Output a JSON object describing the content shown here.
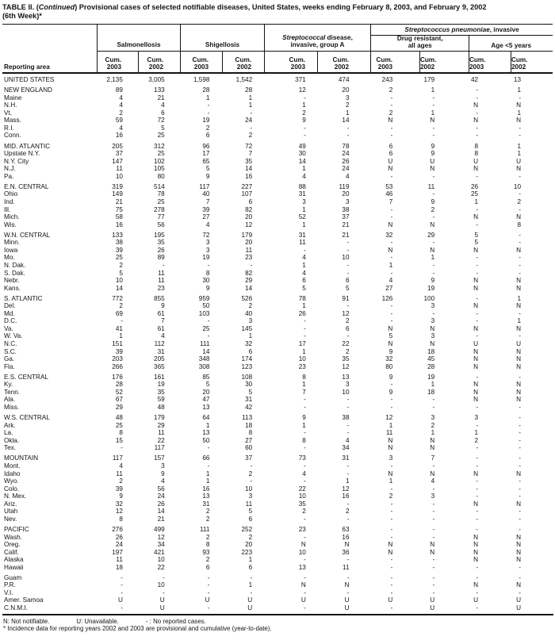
{
  "title": {
    "pre": "TABLE II. (",
    "cont": "Continued",
    "post": ") Provisional cases of selected notifiable diseases, United States, weeks ending February 8, 2003, and February 9, 2002",
    "line2": "(6th Week)*"
  },
  "header": {
    "reporting_area": "Reporting area",
    "groups": {
      "salmonellosis": "Salmonellosis",
      "shigellosis": "Shigellosis",
      "strep_a_italic": "Streptococcal",
      "strep_a_rest1": " disease,",
      "strep_a_line2": "invasive, group A",
      "pneumoniae_italic": "Streptococcus pneumoniae",
      "pneumoniae_rest": ", invasive",
      "drug_resistant_line1": "Drug resistant,",
      "drug_resistant_line2": "all ages",
      "age_under_5": "Age <5 years"
    },
    "columns": [
      {
        "line1": "Cum.",
        "line2": "2003"
      },
      {
        "line1": "Cum.",
        "line2": "2002"
      },
      {
        "line1": "Cum.",
        "line2": "2003"
      },
      {
        "line1": "Cum.",
        "line2": "2002"
      },
      {
        "line1": "Cum.",
        "line2": "2003"
      },
      {
        "line1": "Cum.",
        "line2": "2002"
      },
      {
        "line1": "Cum.",
        "line2": "2003"
      },
      {
        "line1": "Cum.",
        "line2": "2002"
      },
      {
        "line1": "Cum.",
        "line2": "2003"
      },
      {
        "line1": "Cum.",
        "line2": "2002"
      }
    ]
  },
  "rows": [
    {
      "area": "UNITED STATES",
      "kind": "total",
      "gap": false,
      "values": [
        "2,135",
        "3,005",
        "1,598",
        "1,542",
        "371",
        "474",
        "243",
        "179",
        "42",
        "13"
      ]
    },
    {
      "area": "NEW ENGLAND",
      "kind": "region",
      "gap": true,
      "values": [
        "89",
        "133",
        "28",
        "28",
        "12",
        "20",
        "2",
        "1",
        "-",
        "1"
      ]
    },
    {
      "area": "Maine",
      "kind": "state",
      "gap": false,
      "values": [
        "4",
        "21",
        "1",
        "1",
        "-",
        "3",
        "-",
        "-",
        "-",
        "-"
      ]
    },
    {
      "area": "N.H.",
      "kind": "state",
      "gap": false,
      "values": [
        "4",
        "4",
        "-",
        "1",
        "1",
        "2",
        "-",
        "-",
        "N",
        "N"
      ]
    },
    {
      "area": "Vt.",
      "kind": "state",
      "gap": false,
      "values": [
        "2",
        "6",
        "-",
        "-",
        "2",
        "1",
        "2",
        "1",
        "-",
        "1"
      ]
    },
    {
      "area": "Mass.",
      "kind": "state",
      "gap": false,
      "values": [
        "59",
        "72",
        "19",
        "24",
        "9",
        "14",
        "N",
        "N",
        "N",
        "N"
      ]
    },
    {
      "area": "R.I.",
      "kind": "state",
      "gap": false,
      "values": [
        "4",
        "5",
        "2",
        "-",
        "-",
        "-",
        "-",
        "-",
        "-",
        "-"
      ]
    },
    {
      "area": "Conn.",
      "kind": "state",
      "gap": false,
      "values": [
        "16",
        "25",
        "6",
        "2",
        "-",
        "-",
        "-",
        "-",
        "-",
        "-"
      ]
    },
    {
      "area": "MID. ATLANTIC",
      "kind": "region",
      "gap": true,
      "values": [
        "205",
        "312",
        "96",
        "72",
        "49",
        "78",
        "6",
        "9",
        "8",
        "1"
      ]
    },
    {
      "area": "Upstate N.Y.",
      "kind": "state",
      "gap": false,
      "values": [
        "37",
        "25",
        "17",
        "7",
        "30",
        "24",
        "6",
        "9",
        "8",
        "1"
      ]
    },
    {
      "area": "N.Y. City",
      "kind": "state",
      "gap": false,
      "values": [
        "147",
        "102",
        "65",
        "35",
        "14",
        "26",
        "U",
        "U",
        "U",
        "U"
      ]
    },
    {
      "area": "N.J.",
      "kind": "state",
      "gap": false,
      "values": [
        "11",
        "105",
        "5",
        "14",
        "1",
        "24",
        "N",
        "N",
        "N",
        "N"
      ]
    },
    {
      "area": "Pa.",
      "kind": "state",
      "gap": false,
      "values": [
        "10",
        "80",
        "9",
        "16",
        "4",
        "4",
        "-",
        "-",
        "-",
        "-"
      ]
    },
    {
      "area": "E.N. CENTRAL",
      "kind": "region",
      "gap": true,
      "values": [
        "319",
        "514",
        "117",
        "227",
        "88",
        "119",
        "53",
        "11",
        "26",
        "10"
      ]
    },
    {
      "area": "Ohio",
      "kind": "state",
      "gap": false,
      "values": [
        "149",
        "78",
        "40",
        "107",
        "31",
        "20",
        "46",
        "-",
        "25",
        "-"
      ]
    },
    {
      "area": "Ind.",
      "kind": "state",
      "gap": false,
      "values": [
        "21",
        "25",
        "7",
        "6",
        "3",
        "3",
        "7",
        "9",
        "1",
        "2"
      ]
    },
    {
      "area": "Ill.",
      "kind": "state",
      "gap": false,
      "values": [
        "75",
        "278",
        "39",
        "82",
        "1",
        "38",
        "-",
        "2",
        "-",
        "-"
      ]
    },
    {
      "area": "Mich.",
      "kind": "state",
      "gap": false,
      "values": [
        "58",
        "77",
        "27",
        "20",
        "52",
        "37",
        "-",
        "-",
        "N",
        "N"
      ]
    },
    {
      "area": "Wis.",
      "kind": "state",
      "gap": false,
      "values": [
        "16",
        "56",
        "4",
        "12",
        "1",
        "21",
        "N",
        "N",
        "-",
        "8"
      ]
    },
    {
      "area": "W.N. CENTRAL",
      "kind": "region",
      "gap": true,
      "values": [
        "133",
        "195",
        "72",
        "179",
        "31",
        "21",
        "32",
        "29",
        "5",
        "-"
      ]
    },
    {
      "area": "Minn.",
      "kind": "state",
      "gap": false,
      "values": [
        "38",
        "35",
        "3",
        "20",
        "11",
        "-",
        "-",
        "-",
        "5",
        "-"
      ]
    },
    {
      "area": "Iowa",
      "kind": "state",
      "gap": false,
      "values": [
        "39",
        "26",
        "3",
        "11",
        "-",
        "-",
        "N",
        "N",
        "N",
        "N"
      ]
    },
    {
      "area": "Mo.",
      "kind": "state",
      "gap": false,
      "values": [
        "25",
        "89",
        "19",
        "23",
        "4",
        "10",
        "-",
        "1",
        "-",
        "-"
      ]
    },
    {
      "area": "N. Dak.",
      "kind": "state",
      "gap": false,
      "values": [
        "2",
        "-",
        "-",
        "-",
        "1",
        "-",
        "1",
        "-",
        "-",
        "-"
      ]
    },
    {
      "area": "S. Dak.",
      "kind": "state",
      "gap": false,
      "values": [
        "5",
        "11",
        "8",
        "82",
        "4",
        "-",
        "-",
        "-",
        "-",
        "-"
      ]
    },
    {
      "area": "Nebr.",
      "kind": "state",
      "gap": false,
      "values": [
        "10",
        "11",
        "30",
        "29",
        "6",
        "6",
        "4",
        "9",
        "N",
        "N"
      ]
    },
    {
      "area": "Kans.",
      "kind": "state",
      "gap": false,
      "values": [
        "14",
        "23",
        "9",
        "14",
        "5",
        "5",
        "27",
        "19",
        "N",
        "N"
      ]
    },
    {
      "area": "S. ATLANTIC",
      "kind": "region",
      "gap": true,
      "values": [
        "772",
        "855",
        "959",
        "526",
        "78",
        "91",
        "126",
        "100",
        "-",
        "1"
      ]
    },
    {
      "area": "Del.",
      "kind": "state",
      "gap": false,
      "values": [
        "2",
        "9",
        "50",
        "2",
        "1",
        "-",
        "-",
        "3",
        "N",
        "N"
      ]
    },
    {
      "area": "Md.",
      "kind": "state",
      "gap": false,
      "values": [
        "69",
        "61",
        "103",
        "40",
        "26",
        "12",
        "-",
        "-",
        "-",
        "-"
      ]
    },
    {
      "area": "D.C.",
      "kind": "state",
      "gap": false,
      "values": [
        "-",
        "7",
        "-",
        "3",
        "-",
        "2",
        "-",
        "3",
        "-",
        "1"
      ]
    },
    {
      "area": "Va.",
      "kind": "state",
      "gap": false,
      "values": [
        "41",
        "61",
        "25",
        "145",
        "-",
        "6",
        "N",
        "N",
        "N",
        "N"
      ]
    },
    {
      "area": "W. Va.",
      "kind": "state",
      "gap": false,
      "values": [
        "1",
        "4",
        "-",
        "1",
        "-",
        "-",
        "5",
        "3",
        "-",
        "-"
      ]
    },
    {
      "area": "N.C.",
      "kind": "state",
      "gap": false,
      "values": [
        "151",
        "112",
        "111",
        "32",
        "17",
        "22",
        "N",
        "N",
        "U",
        "U"
      ]
    },
    {
      "area": "S.C.",
      "kind": "state",
      "gap": false,
      "values": [
        "39",
        "31",
        "14",
        "6",
        "1",
        "2",
        "9",
        "18",
        "N",
        "N"
      ]
    },
    {
      "area": "Ga.",
      "kind": "state",
      "gap": false,
      "values": [
        "203",
        "205",
        "348",
        "174",
        "10",
        "35",
        "32",
        "45",
        "N",
        "N"
      ]
    },
    {
      "area": "Fla.",
      "kind": "state",
      "gap": false,
      "values": [
        "266",
        "365",
        "308",
        "123",
        "23",
        "12",
        "80",
        "28",
        "N",
        "N"
      ]
    },
    {
      "area": "E.S. CENTRAL",
      "kind": "region",
      "gap": true,
      "values": [
        "176",
        "161",
        "85",
        "108",
        "8",
        "13",
        "9",
        "19",
        "-",
        "-"
      ]
    },
    {
      "area": "Ky.",
      "kind": "state",
      "gap": false,
      "values": [
        "28",
        "19",
        "5",
        "30",
        "1",
        "3",
        "-",
        "1",
        "N",
        "N"
      ]
    },
    {
      "area": "Tenn.",
      "kind": "state",
      "gap": false,
      "values": [
        "52",
        "35",
        "20",
        "5",
        "7",
        "10",
        "9",
        "18",
        "N",
        "N"
      ]
    },
    {
      "area": "Ala.",
      "kind": "state",
      "gap": false,
      "values": [
        "67",
        "59",
        "47",
        "31",
        "-",
        "-",
        "-",
        "-",
        "N",
        "N"
      ]
    },
    {
      "area": "Miss.",
      "kind": "state",
      "gap": false,
      "values": [
        "29",
        "48",
        "13",
        "42",
        "-",
        "-",
        "-",
        "-",
        "-",
        "-"
      ]
    },
    {
      "area": "W.S. CENTRAL",
      "kind": "region",
      "gap": true,
      "values": [
        "48",
        "179",
        "64",
        "113",
        "9",
        "38",
        "12",
        "3",
        "3",
        "-"
      ]
    },
    {
      "area": "Ark.",
      "kind": "state",
      "gap": false,
      "values": [
        "25",
        "29",
        "1",
        "18",
        "1",
        "-",
        "1",
        "2",
        "-",
        "-"
      ]
    },
    {
      "area": "La.",
      "kind": "state",
      "gap": false,
      "values": [
        "8",
        "11",
        "13",
        "8",
        "-",
        "-",
        "11",
        "1",
        "1",
        "-"
      ]
    },
    {
      "area": "Okla.",
      "kind": "state",
      "gap": false,
      "values": [
        "15",
        "22",
        "50",
        "27",
        "8",
        "4",
        "N",
        "N",
        "2",
        "-"
      ]
    },
    {
      "area": "Tex.",
      "kind": "state",
      "gap": false,
      "values": [
        "-",
        "117",
        "-",
        "60",
        "-",
        "34",
        "N",
        "N",
        "-",
        "-"
      ]
    },
    {
      "area": "MOUNTAIN",
      "kind": "region",
      "gap": true,
      "values": [
        "117",
        "157",
        "66",
        "37",
        "73",
        "31",
        "3",
        "7",
        "-",
        "-"
      ]
    },
    {
      "area": "Mont.",
      "kind": "state",
      "gap": false,
      "values": [
        "4",
        "3",
        "-",
        "-",
        "-",
        "-",
        "-",
        "-",
        "-",
        "-"
      ]
    },
    {
      "area": "Idaho",
      "kind": "state",
      "gap": false,
      "values": [
        "11",
        "9",
        "1",
        "2",
        "4",
        "-",
        "N",
        "N",
        "N",
        "N"
      ]
    },
    {
      "area": "Wyo.",
      "kind": "state",
      "gap": false,
      "values": [
        "2",
        "4",
        "1",
        "-",
        "-",
        "1",
        "1",
        "4",
        "-",
        "-"
      ]
    },
    {
      "area": "Colo.",
      "kind": "state",
      "gap": false,
      "values": [
        "39",
        "56",
        "16",
        "10",
        "22",
        "12",
        "-",
        "-",
        "-",
        "-"
      ]
    },
    {
      "area": "N. Mex.",
      "kind": "state",
      "gap": false,
      "values": [
        "9",
        "24",
        "13",
        "3",
        "10",
        "16",
        "2",
        "3",
        "-",
        "-"
      ]
    },
    {
      "area": "Ariz.",
      "kind": "state",
      "gap": false,
      "values": [
        "32",
        "26",
        "31",
        "11",
        "35",
        "-",
        "-",
        "-",
        "N",
        "N"
      ]
    },
    {
      "area": "Utah",
      "kind": "state",
      "gap": false,
      "values": [
        "12",
        "14",
        "2",
        "5",
        "2",
        "2",
        "-",
        "-",
        "-",
        "-"
      ]
    },
    {
      "area": "Nev.",
      "kind": "state",
      "gap": false,
      "values": [
        "8",
        "21",
        "2",
        "6",
        "-",
        "-",
        "-",
        "-",
        "-",
        "-"
      ]
    },
    {
      "area": "PACIFIC",
      "kind": "region",
      "gap": true,
      "values": [
        "276",
        "499",
        "111",
        "252",
        "23",
        "63",
        "-",
        "-",
        "-",
        "-"
      ]
    },
    {
      "area": "Wash.",
      "kind": "state",
      "gap": false,
      "values": [
        "26",
        "12",
        "2",
        "2",
        "-",
        "16",
        "-",
        "-",
        "N",
        "N"
      ]
    },
    {
      "area": "Oreg.",
      "kind": "state",
      "gap": false,
      "values": [
        "24",
        "34",
        "8",
        "20",
        "N",
        "N",
        "N",
        "N",
        "N",
        "N"
      ]
    },
    {
      "area": "Calif.",
      "kind": "state",
      "gap": false,
      "values": [
        "197",
        "421",
        "93",
        "223",
        "10",
        "36",
        "N",
        "N",
        "N",
        "N"
      ]
    },
    {
      "area": "Alaska",
      "kind": "state",
      "gap": false,
      "values": [
        "11",
        "10",
        "2",
        "1",
        "-",
        "-",
        "-",
        "-",
        "N",
        "N"
      ]
    },
    {
      "area": "Hawaii",
      "kind": "state",
      "gap": false,
      "values": [
        "18",
        "22",
        "6",
        "6",
        "13",
        "11",
        "-",
        "-",
        "-",
        "-"
      ]
    },
    {
      "area": "Guam",
      "kind": "territory",
      "gap": true,
      "values": [
        "-",
        "-",
        "-",
        "-",
        "-",
        "-",
        "-",
        "-",
        "-",
        "-"
      ]
    },
    {
      "area": "P.R.",
      "kind": "territory",
      "gap": false,
      "values": [
        "-",
        "10",
        "-",
        "1",
        "N",
        "N",
        "-",
        "-",
        "N",
        "N"
      ]
    },
    {
      "area": "V.I.",
      "kind": "territory",
      "gap": false,
      "values": [
        "-",
        "-",
        "-",
        "-",
        "-",
        "-",
        "-",
        "-",
        "-",
        "-"
      ]
    },
    {
      "area": "Amer. Samoa",
      "kind": "territory",
      "gap": false,
      "values": [
        "U",
        "U",
        "U",
        "U",
        "U",
        "U",
        "U",
        "U",
        "U",
        "U"
      ]
    },
    {
      "area": "C.N.M.I.",
      "kind": "territory",
      "gap": false,
      "values": [
        "-",
        "U",
        "-",
        "U",
        "-",
        "U",
        "-",
        "U",
        "-",
        "U"
      ]
    }
  ],
  "footer": {
    "n": "N: Not notifiable.",
    "u": "U: Unavailable.",
    "dash": "- : No reported cases.",
    "note": "* Incidence data for reporting years 2002 and 2003 are provisional and cumulative (year-to-date)."
  }
}
